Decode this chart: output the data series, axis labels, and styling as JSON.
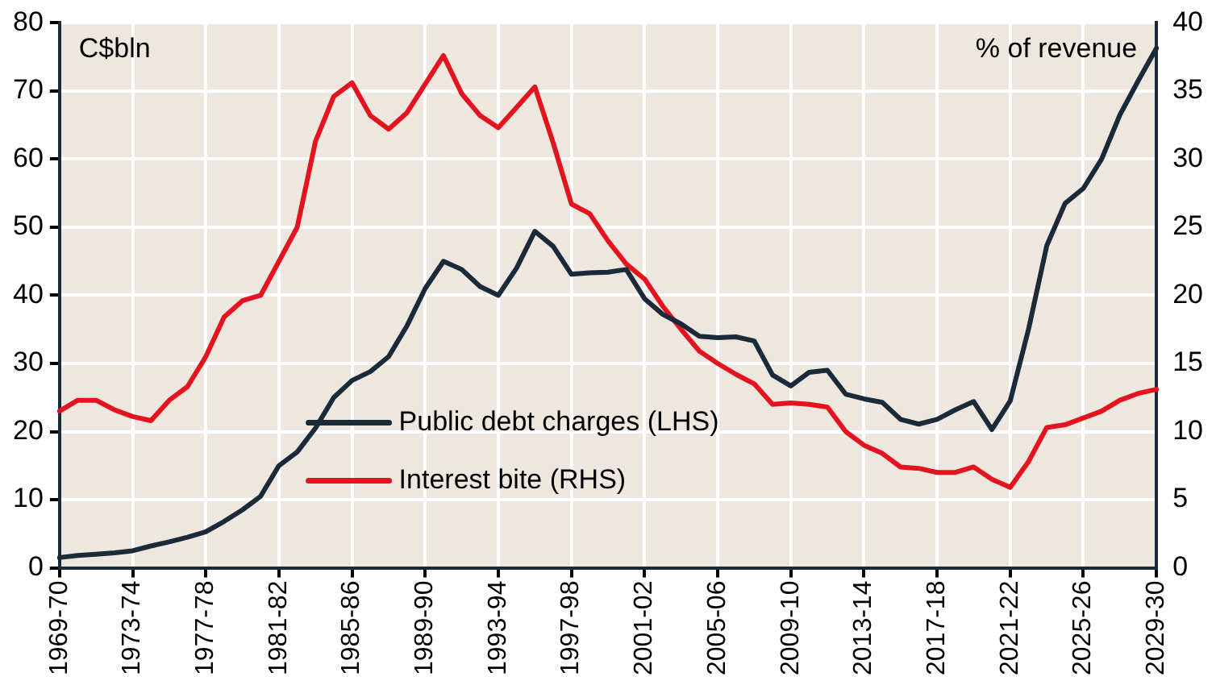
{
  "chart_data": {
    "type": "line",
    "ylabel": "C$bln",
    "y2label": "% of revenue",
    "categories": [
      "1969-70",
      null,
      null,
      null,
      "1973-74",
      null,
      null,
      null,
      "1977-78",
      null,
      null,
      null,
      "1981-82",
      null,
      null,
      null,
      "1985-86",
      null,
      null,
      null,
      "1989-90",
      null,
      null,
      null,
      "1993-94",
      null,
      null,
      null,
      "1997-98",
      null,
      null,
      null,
      "2001-02",
      null,
      null,
      null,
      "2005-06",
      null,
      null,
      null,
      "2009-10",
      null,
      null,
      null,
      "2013-14",
      null,
      null,
      null,
      "2017-18",
      null,
      null,
      null,
      "2021-22",
      null,
      null,
      null,
      "2025-26",
      null,
      null,
      null,
      "2029-30"
    ],
    "series": [
      {
        "name": "Public debt charges (LHS)",
        "color": "#1b2a38",
        "values": [
          1.5,
          1.8,
          2.0,
          2.2,
          2.5,
          3.2,
          3.8,
          4.5,
          5.3,
          6.8,
          8.5,
          10.5,
          15,
          17,
          20.5,
          25,
          27.5,
          28.8,
          31,
          35.5,
          41,
          45,
          43.8,
          41.3,
          40,
          44,
          49.4,
          47.2,
          43.1,
          43.3,
          43.4,
          43.8,
          39.5,
          37.2,
          35.8,
          34,
          33.8,
          33.9,
          33.3,
          28.3,
          26.7,
          28.7,
          29,
          25.5,
          24.8,
          24.3,
          21.8,
          21.1,
          21.8,
          23.2,
          24.4,
          20.3,
          24.5,
          35,
          47.3,
          53.5,
          55.7,
          60,
          66.5,
          71.5,
          76.3
        ]
      },
      {
        "name": "Interest bite (RHS)",
        "color": "#e3141f",
        "axis": "y2",
        "values": [
          11.5,
          12.3,
          12.3,
          11.6,
          11.1,
          10.8,
          12.3,
          13.3,
          15.5,
          18.4,
          19.6,
          20,
          22.5,
          25,
          31.3,
          34.6,
          35.6,
          33.2,
          32.2,
          33.4,
          35.5,
          37.6,
          34.8,
          33.2,
          32.3,
          33.8,
          35.3,
          31.2,
          26.7,
          26,
          24,
          22.3,
          21.2,
          19.2,
          17.5,
          15.9,
          15,
          14.2,
          13.5,
          12,
          12.1,
          12,
          11.8,
          10,
          9,
          8.4,
          7.4,
          7.3,
          7.0,
          7,
          7.4,
          6.5,
          5.9,
          7.8,
          10.3,
          10.5,
          11,
          11.5,
          12.3,
          12.8,
          13.1
        ]
      }
    ],
    "ylim": [
      0,
      80
    ],
    "yticks": [
      0,
      10,
      20,
      30,
      40,
      50,
      60,
      70,
      80
    ],
    "y2lim": [
      0,
      40
    ],
    "y2ticks": [
      0,
      5,
      10,
      15,
      20,
      25,
      30,
      35,
      40
    ],
    "grid": true,
    "legend": "bottom",
    "marker": "none",
    "line_style": "solid"
  }
}
